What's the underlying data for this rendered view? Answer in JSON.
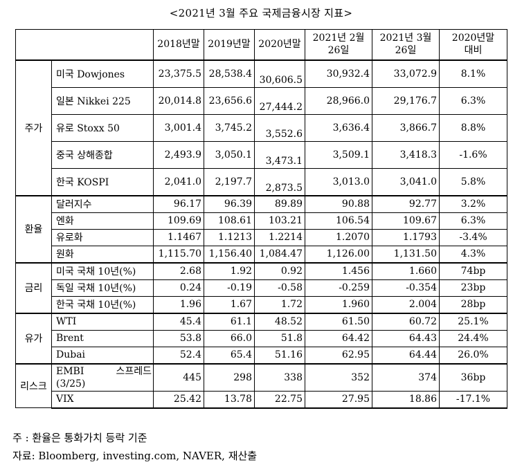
{
  "title": "<2021년 3월 주요 국제금융시장 지표>",
  "headers": [
    "2018년말",
    "2019년말",
    "2020년말",
    "2021년 2월\n26일",
    "2021년 3월\n26일",
    "2020년말\n대비"
  ],
  "sections": [
    {
      "category": "주가",
      "rows": [
        {
          "label": "미국 Dowjones",
          "v": [
            "23,375.5",
            "28,538.4",
            "30,606.5",
            "30,932.4",
            "33,072.9"
          ],
          "chg": "8.1%"
        },
        {
          "label": "일본 Nikkei 225",
          "v": [
            "20,014.8",
            "23,656.6",
            "27,444.2",
            "28,966.0",
            "29,176.7"
          ],
          "chg": "6.3%"
        },
        {
          "label": "유로 Stoxx 50",
          "v": [
            "3,001.4",
            "3,745.2",
            "3,552.6",
            "3,636.4",
            "3,866.7"
          ],
          "chg": "8.8%"
        },
        {
          "label": "중국 상해종합",
          "v": [
            "2,493.9",
            "3,050.1",
            "3,473.1",
            "3,509.1",
            "3,418.3"
          ],
          "chg": "-1.6%"
        },
        {
          "label": "한국 KOSPI",
          "v": [
            "2,041.0",
            "2,197.7",
            "2,873.5",
            "3,013.0",
            "3,041.0"
          ],
          "chg": "5.8%"
        }
      ]
    },
    {
      "category": "환율",
      "rows": [
        {
          "label": "달러지수",
          "v": [
            "96.17",
            "96.39",
            "89.89",
            "90.88",
            "92.77"
          ],
          "chg": "3.2%"
        },
        {
          "label": "엔화",
          "v": [
            "109.69",
            "108.61",
            "103.21",
            "106.54",
            "109.67"
          ],
          "chg": "6.3%"
        },
        {
          "label": "유로화",
          "v": [
            "1.1467",
            "1.1213",
            "1.2214",
            "1.2070",
            "1.1793"
          ],
          "chg": "-3.4%"
        },
        {
          "label": "원화",
          "v": [
            "1,115.70",
            "1,156.40",
            "1,084.47",
            "1,126.00",
            "1,131.50"
          ],
          "chg": "4.3%"
        }
      ]
    },
    {
      "category": "금리",
      "rows": [
        {
          "label": "미국 국채 10년(%)",
          "v": [
            "2.68",
            "1.92",
            "0.92",
            "1.456",
            "1.660"
          ],
          "chg": "74bp"
        },
        {
          "label": "독일 국채 10년(%)",
          "v": [
            "0.24",
            "-0.19",
            "-0.58",
            "-0.259",
            "-0.354"
          ],
          "chg": "23bp"
        },
        {
          "label": "한국 국채 10년(%)",
          "v": [
            "1.96",
            "1.67",
            "1.72",
            "1.960",
            "2.004"
          ],
          "chg": "28bp"
        }
      ]
    },
    {
      "category": "유가",
      "rows": [
        {
          "label": "WTI",
          "v": [
            "45.4",
            "61.1",
            "48.52",
            "61.50",
            "60.72"
          ],
          "chg": "25.1%"
        },
        {
          "label": "Brent",
          "v": [
            "53.8",
            "66.0",
            "51.8",
            "64.42",
            "64.43"
          ],
          "chg": "24.4%"
        },
        {
          "label": "Dubai",
          "v": [
            "52.4",
            "65.4",
            "51.16",
            "62.95",
            "64.44"
          ],
          "chg": "26.0%"
        }
      ]
    },
    {
      "category": "리스크",
      "rows": [
        {
          "label_a": "EMBI",
          "label_b": "스프레드",
          "label_c": "(3/25)",
          "v": [
            "445",
            "298",
            "338",
            "352",
            "374"
          ],
          "chg": "36bp"
        },
        {
          "label": "VIX",
          "v": [
            "25.42",
            "13.78",
            "22.75",
            "27.95",
            "18.86"
          ],
          "chg": "-17.1%"
        }
      ]
    }
  ],
  "note1": "주 : 환율은 통화가치 등락 기준",
  "note2": "자료: Bloomberg, investing.com, NAVER, 재산출"
}
